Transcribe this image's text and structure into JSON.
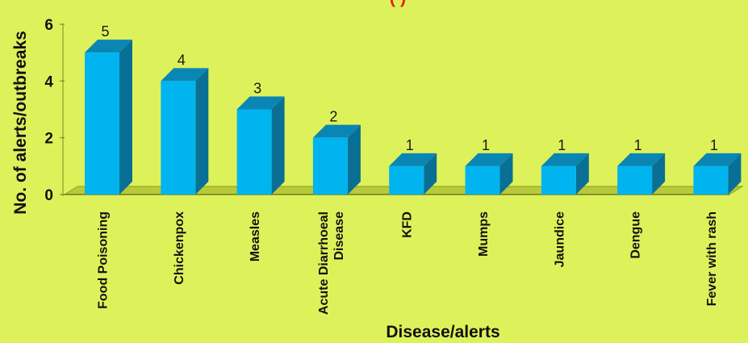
{
  "chart_data": {
    "type": "bar",
    "title_fragment": "(      )",
    "xlabel": "Disease/alerts",
    "ylabel": "No. of alerts/outbreaks",
    "ylim": [
      0,
      6
    ],
    "yticks": [
      "0",
      "2",
      "4",
      "6"
    ],
    "categories": [
      "Food Poisoning",
      "Chickenpox",
      "Measles",
      "Acute Diarrhoeal Disease",
      "KFD",
      "Mumps",
      "Jaundice",
      "Dengue",
      "Fever with rash"
    ],
    "category_lines": [
      [
        "Food Poisoning"
      ],
      [
        "Chickenpox"
      ],
      [
        "Measles"
      ],
      [
        "Acute Diarrhoeal",
        "Disease"
      ],
      [
        "KFD"
      ],
      [
        "Mumps"
      ],
      [
        "Jaundice"
      ],
      [
        "Dengue"
      ],
      [
        "Fever with rash"
      ]
    ],
    "values": [
      5,
      4,
      3,
      2,
      1,
      1,
      1,
      1,
      1
    ],
    "data_labels": [
      "5",
      "4",
      "3",
      "2",
      "1",
      "1",
      "1",
      "1",
      "1"
    ],
    "grid": false,
    "colors": {
      "background": "#ddf25a",
      "bar_front": "#00b4f0",
      "bar_side": "#0a6f95",
      "bar_top": "#0a86b4",
      "floor": "#b8c93a",
      "title": "#e8201c"
    }
  }
}
